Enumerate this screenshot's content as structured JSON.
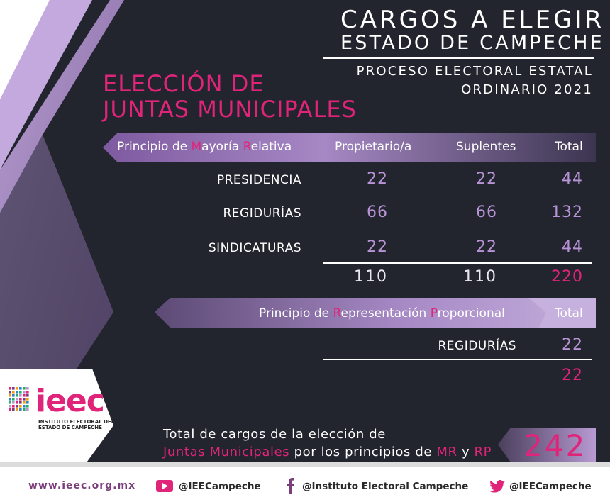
{
  "header": {
    "title_line1": "CARGOS A ELEGIR",
    "title_line2": "ESTADO DE CAMPECHE",
    "subtitle_line1": "PROCESO ELECTORAL ESTATAL",
    "subtitle_line2": "ORDINARIO 2021"
  },
  "section_title": {
    "line1": "ELECCIÓN DE",
    "line2": "JUNTAS MUNICIPALES"
  },
  "mr_table": {
    "band_label_parts": [
      "Principio de ",
      "M",
      "ayoría ",
      "R",
      "elativa"
    ],
    "columns": [
      "Propietario/a",
      "Suplentes",
      "Total"
    ],
    "rows": [
      {
        "label": "PRESIDENCIA",
        "propietario": "22",
        "suplentes": "22",
        "total": "44"
      },
      {
        "label": "REGIDURÍAS",
        "propietario": "66",
        "suplentes": "66",
        "total": "132"
      },
      {
        "label": "SINDICATURAS",
        "propietario": "22",
        "suplentes": "22",
        "total": "44"
      }
    ],
    "totals": {
      "propietario": "110",
      "suplentes": "110",
      "total": "220"
    }
  },
  "rp_table": {
    "band_label_parts": [
      "Principio de ",
      "R",
      "epresentación ",
      "P",
      "roporcional"
    ],
    "total_header": "Total",
    "row_label": "REGIDURÍAS",
    "row_total": "22",
    "sum_total": "22"
  },
  "summary": {
    "line1": "Total de cargos de la elección de",
    "line2_pink": "Juntas Municipales",
    "line2_mid": " por los principios de ",
    "mr": "MR",
    "y": " y ",
    "rp": "RP",
    "grand_total": "242"
  },
  "logo": {
    "text": "ieec",
    "sub_line1": "INSTITUTO ELECTORAL DEL",
    "sub_line2": "ESTADO DE CAMPECHE"
  },
  "footer": {
    "website": "www.ieec.org.mx",
    "youtube": "@IEECampeche",
    "facebook": "@Instituto Electoral Campeche",
    "twitter": "@IEECampeche"
  },
  "colors": {
    "background_dark": "#22242e",
    "accent_pink": "#e0247a",
    "accent_lavender": "#b894d6",
    "band_purple": "#9a7bb6"
  }
}
